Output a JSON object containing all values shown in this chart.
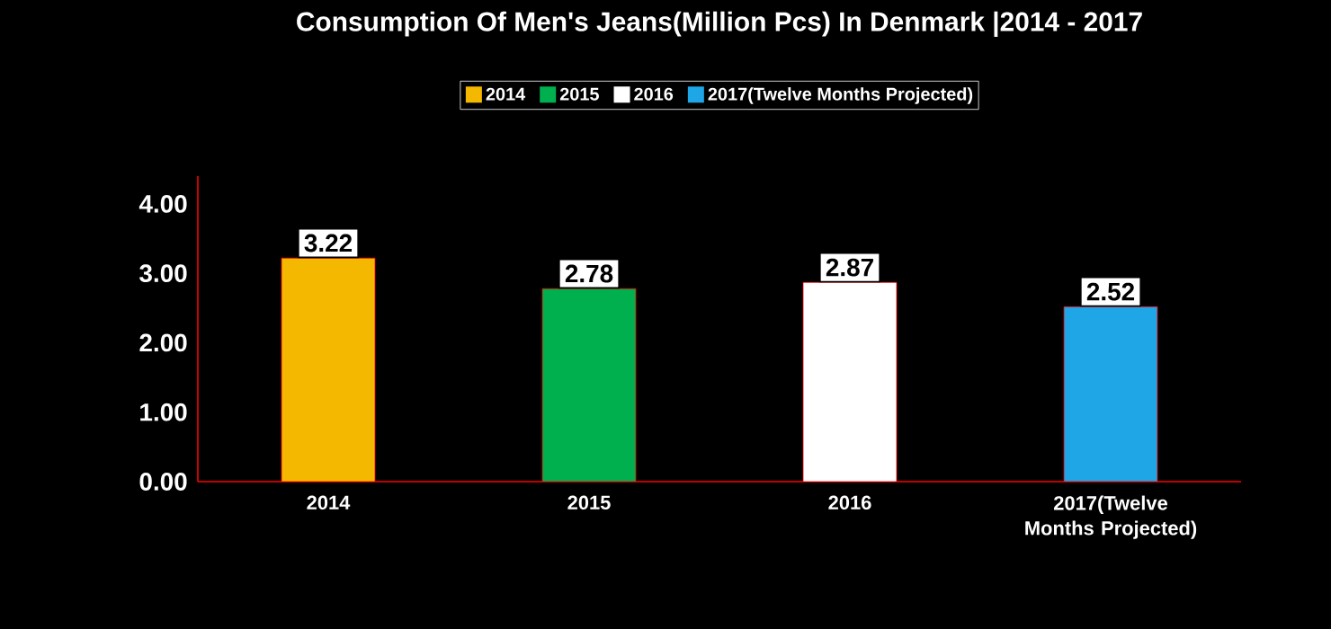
{
  "chart_data": {
    "type": "bar",
    "title": "Consumption Of Men's Jeans(Million Pcs) In Denmark  |2014 - 2017",
    "categories": [
      "2014",
      "2015",
      "2016",
      "2017(Twelve Months Projected)"
    ],
    "series": [
      {
        "name": "2014",
        "color": "#f5b800",
        "values": [
          3.22,
          null,
          null,
          null
        ]
      },
      {
        "name": "2015",
        "color": "#00b04f",
        "values": [
          null,
          2.78,
          null,
          null
        ]
      },
      {
        "name": "2016",
        "color": "#ffffff",
        "values": [
          null,
          null,
          2.87,
          null
        ]
      },
      {
        "name": "2017(Twelve Months Projected)",
        "color": "#1ea6e6",
        "values": [
          null,
          null,
          null,
          2.52
        ]
      }
    ],
    "ylim": [
      0,
      4.4
    ],
    "yticks": [
      {
        "value": 0,
        "label": "0.00"
      },
      {
        "value": 1,
        "label": "1.00"
      },
      {
        "value": 2,
        "label": "2.00"
      },
      {
        "value": 3,
        "label": "3.00"
      },
      {
        "value": 4,
        "label": "4.00"
      }
    ],
    "data_labels": true,
    "legend": "top",
    "grid": false
  }
}
